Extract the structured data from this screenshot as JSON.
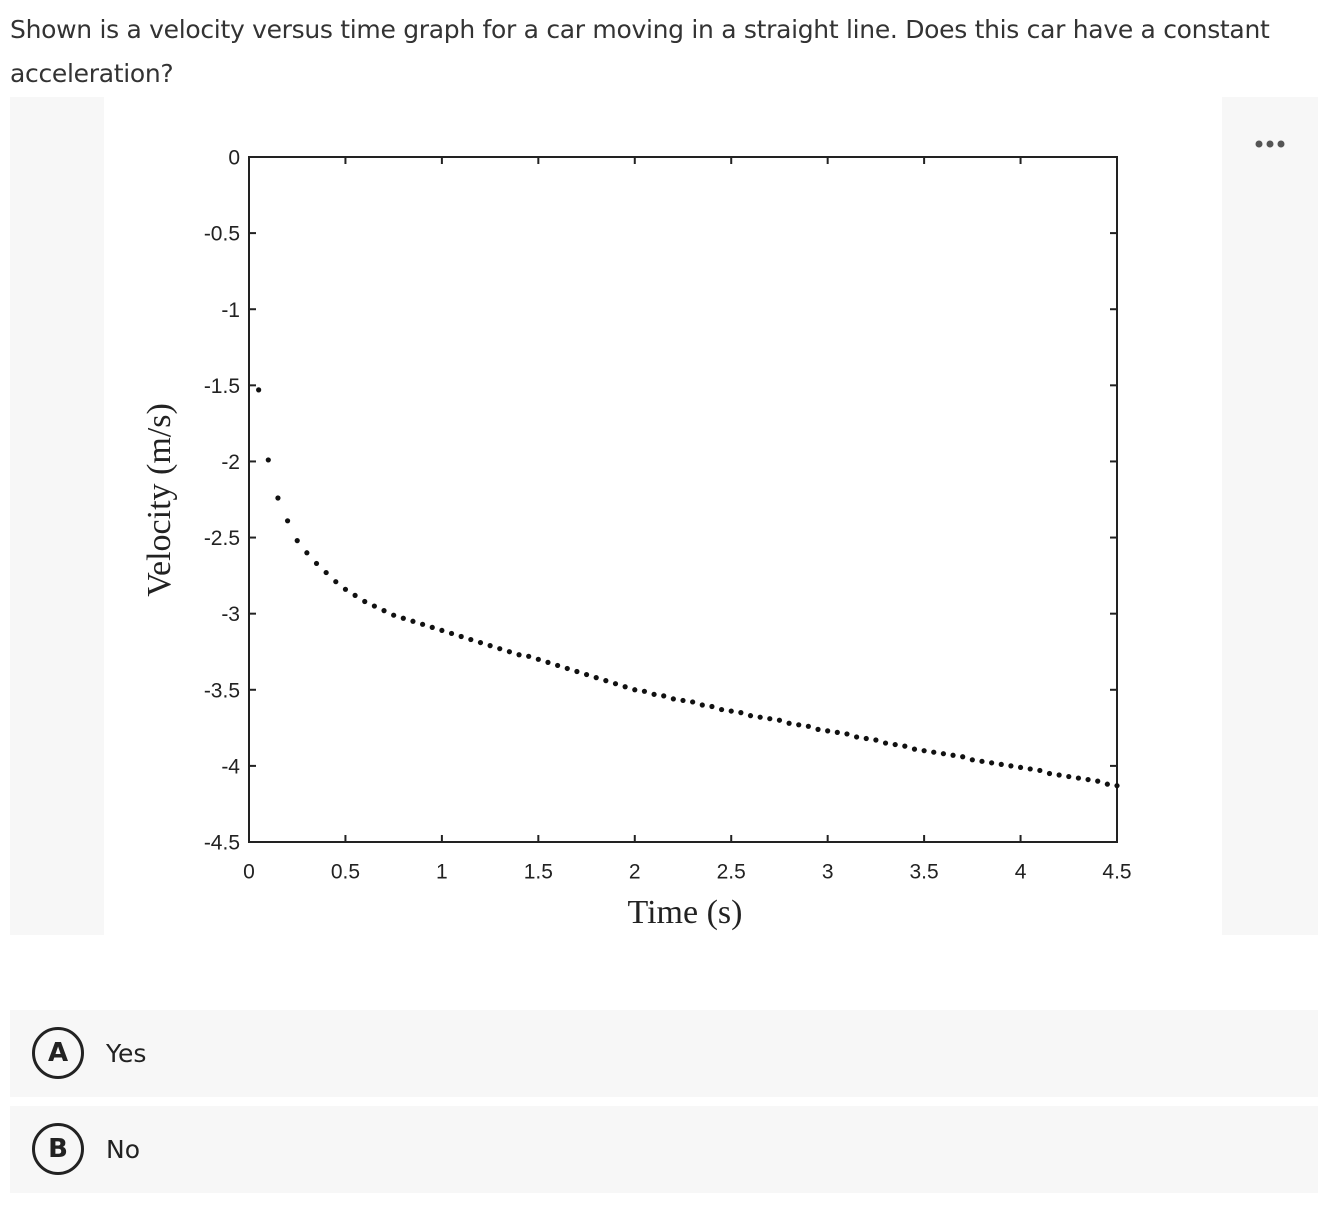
{
  "question": "Shown is a velocity versus time graph for a car moving in a straight line. Does this car have a constant acceleration?",
  "chart_data": {
    "type": "scatter",
    "x_label": "Time (s)",
    "y_label": "Velocity (m/s)",
    "color": "#111111",
    "x": [
      0.05,
      0.1,
      0.15,
      0.2,
      0.25,
      0.3,
      0.35,
      0.4,
      0.45,
      0.5,
      0.55,
      0.6,
      0.65,
      0.7,
      0.75,
      0.8,
      0.85,
      0.9,
      0.95,
      1,
      1.05,
      1.1,
      1.15,
      1.2,
      1.25,
      1.3,
      1.35,
      1.4,
      1.45,
      1.5,
      1.55,
      1.6,
      1.65,
      1.7,
      1.75,
      1.8,
      1.85,
      1.9,
      1.95,
      2,
      2.05,
      2.1,
      2.15,
      2.2,
      2.25,
      2.3,
      2.35,
      2.4,
      2.45,
      2.5,
      2.55,
      2.6,
      2.65,
      2.7,
      2.75,
      2.8,
      2.85,
      2.9,
      2.95,
      3,
      3.05,
      3.1,
      3.15,
      3.2,
      3.25,
      3.3,
      3.35,
      3.4,
      3.45,
      3.5,
      3.55,
      3.6,
      3.65,
      3.7,
      3.75,
      3.8,
      3.85,
      3.9,
      3.95,
      4,
      4.05,
      4.1,
      4.15,
      4.2,
      4.25,
      4.3,
      4.35,
      4.4,
      4.45,
      4.5
    ],
    "values": [
      -1.53,
      -1.99,
      -2.24,
      -2.39,
      -2.52,
      -2.6,
      -2.67,
      -2.73,
      -2.79,
      -2.84,
      -2.88,
      -2.92,
      -2.95,
      -2.98,
      -3.01,
      -3.03,
      -3.05,
      -3.07,
      -3.09,
      -3.11,
      -3.13,
      -3.15,
      -3.17,
      -3.19,
      -3.21,
      -3.23,
      -3.25,
      -3.27,
      -3.28,
      -3.3,
      -3.32,
      -3.34,
      -3.36,
      -3.38,
      -3.4,
      -3.42,
      -3.44,
      -3.46,
      -3.48,
      -3.5,
      -3.51,
      -3.53,
      -3.54,
      -3.56,
      -3.57,
      -3.58,
      -3.6,
      -3.61,
      -3.63,
      -3.64,
      -3.65,
      -3.67,
      -3.68,
      -3.69,
      -3.7,
      -3.72,
      -3.73,
      -3.74,
      -3.76,
      -3.77,
      -3.78,
      -3.79,
      -3.81,
      -3.82,
      -3.83,
      -3.85,
      -3.86,
      -3.87,
      -3.89,
      -3.9,
      -3.91,
      -3.92,
      -3.93,
      -3.94,
      -3.96,
      -3.97,
      -3.98,
      -3.99,
      -4.0,
      -4.01,
      -4.02,
      -4.03,
      -4.05,
      -4.06,
      -4.07,
      -4.08,
      -4.09,
      -4.1,
      -4.12,
      -4.13
    ],
    "xlim": [
      0,
      4.5
    ],
    "ylim": [
      -4.5,
      0
    ],
    "xticks": [
      0,
      0.5,
      1,
      1.5,
      2,
      2.5,
      3,
      3.5,
      4,
      4.5
    ],
    "yticks": [
      0,
      -0.5,
      -1,
      -1.5,
      -2,
      -2.5,
      -3,
      -3.5,
      -4,
      -4.5
    ],
    "grid": false
  },
  "options": [
    {
      "letter": "A",
      "text": "Yes"
    },
    {
      "letter": "B",
      "text": "No"
    }
  ]
}
